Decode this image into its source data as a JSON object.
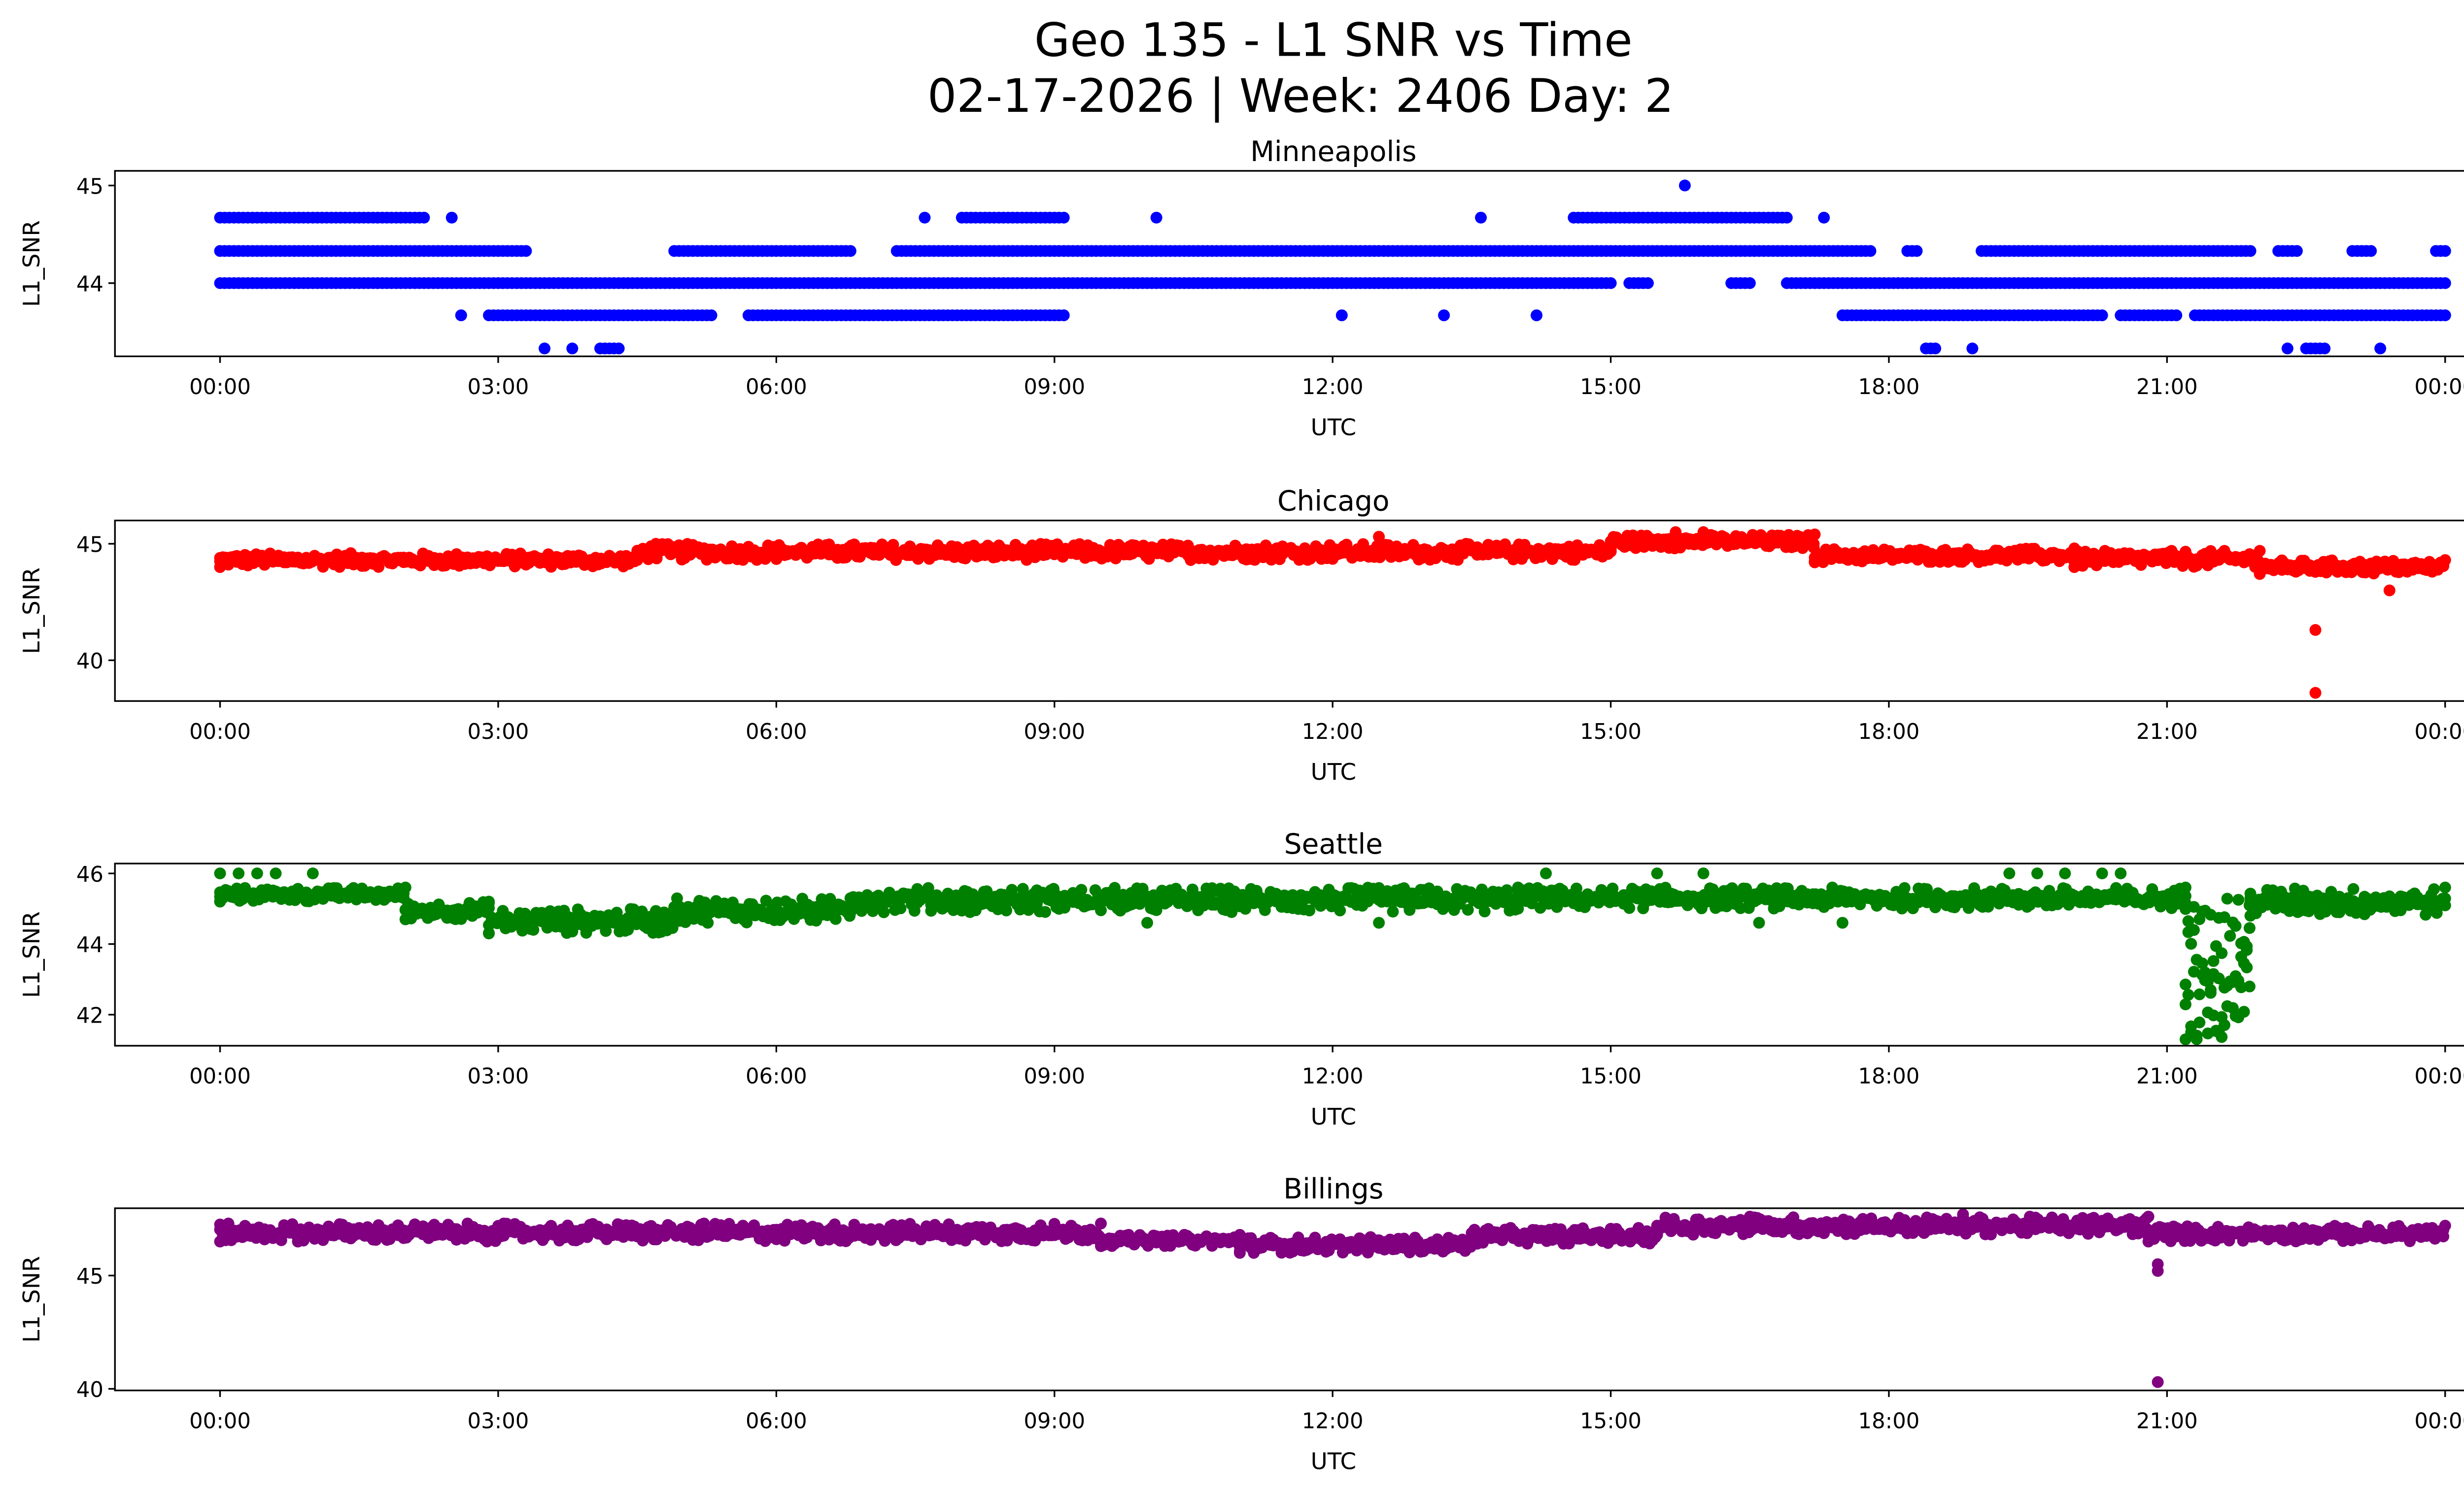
{
  "chart_data": {
    "type": "scatter",
    "title_line1": "Geo 135 - L1 SNR vs Time",
    "title_line2": "02-17-2026 | Week: 2406 Day: 2",
    "x_tick_labels": [
      "00:00",
      "03:00",
      "06:00",
      "09:00",
      "12:00",
      "15:00",
      "18:00",
      "21:00",
      "00:00"
    ],
    "x_ticks_hours": [
      0,
      3,
      6,
      9,
      12,
      15,
      18,
      21,
      24
    ],
    "xlim_hours": [
      -1.4,
      25.2
    ],
    "panels": [
      {
        "title": "Minneapolis",
        "xlabel": "UTC",
        "ylabel": "L1_SNR",
        "color": "#0000ff",
        "ylim": [
          43.25,
          45.15
        ],
        "yticks": [
          44,
          45
        ],
        "ytick_labels": [
          "44",
          "45"
        ],
        "level_segments": [
          [
            0,
            2.2,
            44.67
          ],
          [
            2.5,
            2.5,
            44.67
          ],
          [
            7.6,
            7.6,
            44.67
          ],
          [
            8.0,
            9.1,
            44.67
          ],
          [
            10.1,
            10.1,
            44.67
          ],
          [
            13.6,
            13.6,
            44.67
          ],
          [
            14.6,
            16.9,
            44.67
          ],
          [
            17.3,
            17.3,
            44.67
          ],
          [
            0,
            3.3,
            44.33
          ],
          [
            4.9,
            6.8,
            44.33
          ],
          [
            7.3,
            17.8,
            44.33
          ],
          [
            18.2,
            18.3,
            44.33
          ],
          [
            19.0,
            21.9,
            44.33
          ],
          [
            22.2,
            22.4,
            44.33
          ],
          [
            23.0,
            23.2,
            44.33
          ],
          [
            23.9,
            24.0,
            44.33
          ],
          [
            0,
            15.0,
            44.0
          ],
          [
            15.2,
            15.4,
            44.0
          ],
          [
            16.3,
            16.5,
            44.0
          ],
          [
            16.9,
            24.0,
            44.0
          ],
          [
            2.6,
            2.6,
            43.67
          ],
          [
            2.9,
            5.3,
            43.67
          ],
          [
            5.7,
            9.1,
            43.67
          ],
          [
            12.1,
            12.1,
            43.67
          ],
          [
            13.2,
            13.2,
            43.67
          ],
          [
            14.2,
            14.2,
            43.67
          ],
          [
            17.5,
            20.3,
            43.67
          ],
          [
            20.5,
            21.1,
            43.67
          ],
          [
            21.3,
            24.0,
            43.67
          ],
          [
            3.5,
            3.5,
            43.33
          ],
          [
            3.8,
            3.8,
            43.33
          ],
          [
            4.1,
            4.3,
            43.33
          ],
          [
            18.4,
            18.5,
            43.33
          ],
          [
            18.9,
            18.9,
            43.33
          ],
          [
            22.3,
            22.3,
            43.33
          ],
          [
            22.5,
            22.7,
            43.33
          ],
          [
            23.3,
            23.3,
            43.33
          ]
        ],
        "band_segments": [],
        "outliers": [
          [
            15.8,
            45.0
          ]
        ]
      },
      {
        "title": "Chicago",
        "xlabel": "UTC",
        "ylabel": "L1_SNR",
        "color": "#ff0000",
        "ylim": [
          38.25,
          46.0
        ],
        "yticks": [
          40,
          45
        ],
        "ytick_labels": [
          "40",
          "45"
        ],
        "level_segments": [],
        "band_segments": [
          [
            0,
            4.5,
            44.0,
            44.6
          ],
          [
            4.5,
            15.0,
            44.3,
            45.0
          ],
          [
            15.0,
            17.2,
            44.8,
            45.4
          ],
          [
            17.2,
            20.0,
            44.2,
            44.8
          ],
          [
            20.0,
            22.0,
            44.0,
            44.7
          ],
          [
            22.0,
            24.0,
            43.7,
            44.3
          ]
        ],
        "outliers": [
          [
            22.6,
            41.3
          ],
          [
            22.6,
            38.6
          ],
          [
            23.4,
            43.0
          ],
          [
            15.7,
            45.5
          ],
          [
            16.0,
            45.5
          ],
          [
            4.7,
            45.0
          ],
          [
            12.5,
            45.3
          ]
        ]
      },
      {
        "title": "Seattle",
        "xlabel": "UTC",
        "ylabel": "L1_SNR",
        "color": "#008000",
        "ylim": [
          41.12,
          46.28
        ],
        "yticks": [
          42,
          44,
          46
        ],
        "ytick_labels": [
          "42",
          "44",
          "46"
        ],
        "level_segments": [],
        "band_segments": [
          [
            0,
            2.0,
            45.2,
            45.6
          ],
          [
            2.0,
            2.9,
            44.7,
            45.2
          ],
          [
            2.9,
            4.9,
            44.3,
            45.0
          ],
          [
            4.9,
            6.8,
            44.6,
            45.3
          ],
          [
            6.8,
            14.0,
            44.9,
            45.6
          ],
          [
            14.0,
            21.2,
            45.0,
            45.6
          ],
          [
            21.2,
            21.9,
            41.3,
            45.3
          ],
          [
            21.9,
            24.0,
            44.8,
            45.6
          ]
        ],
        "outliers": [
          [
            0,
            46.0
          ],
          [
            0.2,
            46.0
          ],
          [
            0.4,
            46.0
          ],
          [
            0.6,
            46.0
          ],
          [
            1.0,
            46.0
          ],
          [
            14.3,
            46.0
          ],
          [
            15.5,
            46.0
          ],
          [
            16.0,
            46.0
          ],
          [
            19.3,
            46.0
          ],
          [
            19.6,
            46.0
          ],
          [
            19.9,
            46.0
          ],
          [
            20.3,
            46.0
          ],
          [
            20.5,
            46.0
          ],
          [
            10.0,
            44.6
          ],
          [
            12.5,
            44.6
          ],
          [
            16.6,
            44.6
          ],
          [
            17.5,
            44.6
          ]
        ]
      },
      {
        "title": "Billings",
        "xlabel": "UTC",
        "ylabel": "L1_SNR",
        "color": "#800080",
        "ylim": [
          39.93,
          47.97
        ],
        "yticks": [
          40,
          45
        ],
        "ytick_labels": [
          "40",
          "45"
        ],
        "level_segments": [],
        "band_segments": [
          [
            0,
            9.5,
            46.5,
            47.3
          ],
          [
            9.5,
            11.0,
            46.3,
            46.8
          ],
          [
            11.0,
            13.5,
            46.0,
            46.7
          ],
          [
            13.5,
            15.5,
            46.4,
            47.1
          ],
          [
            15.5,
            20.8,
            46.8,
            47.6
          ],
          [
            20.8,
            24.0,
            46.5,
            47.2
          ]
        ],
        "outliers": [
          [
            20.9,
            45.5
          ],
          [
            20.9,
            45.2
          ],
          [
            20.9,
            40.3
          ],
          [
            18.8,
            47.7
          ],
          [
            16.5,
            47.6
          ]
        ]
      }
    ]
  }
}
